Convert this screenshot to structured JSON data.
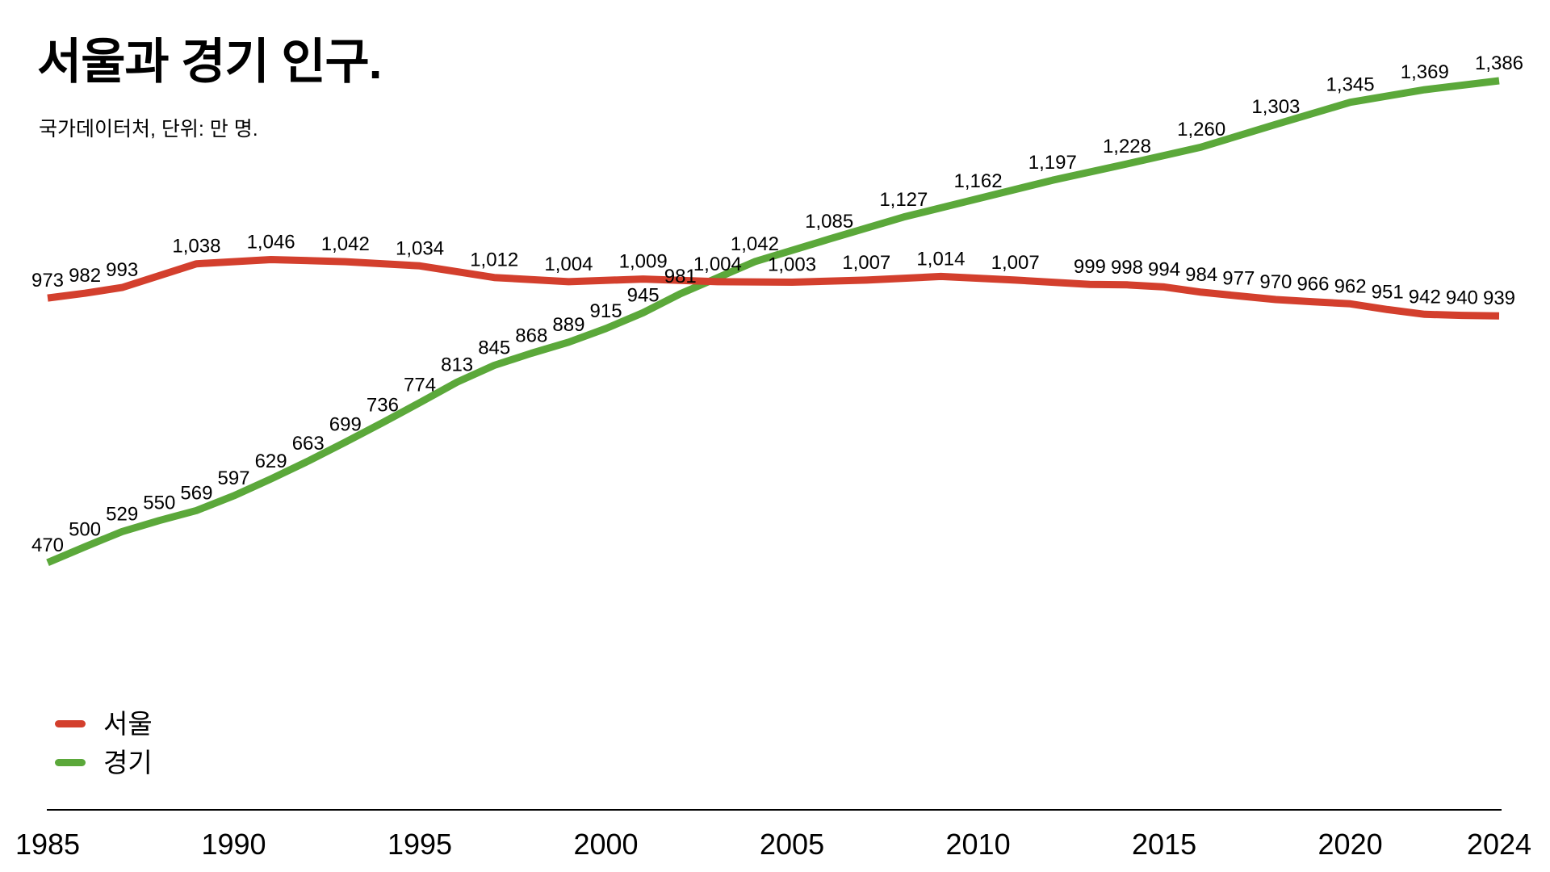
{
  "header": {
    "title": "서울과 경기 인구.",
    "subtitle": "국가데이터처, 단위: 만 명."
  },
  "legend": {
    "items": [
      {
        "label": "서울",
        "color": "#d33f2d"
      },
      {
        "label": "경기",
        "color": "#5ba83a"
      }
    ]
  },
  "colors": {
    "background": "#ffffff",
    "axis": "#000000",
    "label_text": "#000000",
    "seoul": "#d33f2d",
    "gyeonggi": "#5ba83a"
  },
  "chart_data": {
    "type": "line",
    "title": "서울과 경기 인구.",
    "subtitle": "국가데이터처, 단위: 만 명.",
    "unit": "만 명",
    "xlim": [
      1985,
      2024
    ],
    "ylim": [
      0,
      1450
    ],
    "x_ticks": [
      1985,
      1990,
      1995,
      2000,
      2005,
      2010,
      2015,
      2020,
      2024
    ],
    "grid": false,
    "y_axis_visible": false,
    "legend_position": "bottom-left",
    "series": [
      {
        "id": "seoul",
        "name": "서울",
        "color": "#d33f2d",
        "points": [
          [
            1985,
            973
          ],
          [
            1986,
            982
          ],
          [
            1987,
            993
          ],
          [
            1989,
            1038
          ],
          [
            1991,
            1046
          ],
          [
            1993,
            1042
          ],
          [
            1995,
            1034
          ],
          [
            1997,
            1012
          ],
          [
            1999,
            1004
          ],
          [
            2001,
            1009
          ],
          [
            2003,
            1004
          ],
          [
            2005,
            1003
          ],
          [
            2007,
            1007
          ],
          [
            2009,
            1014
          ],
          [
            2011,
            1007
          ],
          [
            2013,
            999
          ],
          [
            2014,
            998
          ],
          [
            2015,
            994
          ],
          [
            2016,
            984
          ],
          [
            2017,
            977
          ],
          [
            2018,
            970
          ],
          [
            2019,
            966
          ],
          [
            2020,
            962
          ],
          [
            2021,
            951
          ],
          [
            2022,
            942
          ],
          [
            2023,
            940
          ],
          [
            2024,
            939
          ]
        ]
      },
      {
        "id": "gyeonggi",
        "name": "경기",
        "color": "#5ba83a",
        "points": [
          [
            1985,
            470
          ],
          [
            1986,
            500
          ],
          [
            1987,
            529
          ],
          [
            1988,
            550
          ],
          [
            1989,
            569
          ],
          [
            1990,
            597
          ],
          [
            1991,
            629
          ],
          [
            1992,
            663
          ],
          [
            1993,
            699
          ],
          [
            1994,
            736
          ],
          [
            1995,
            774
          ],
          [
            1996,
            813
          ],
          [
            1997,
            845
          ],
          [
            1998,
            868
          ],
          [
            1999,
            889
          ],
          [
            2000,
            915
          ],
          [
            2001,
            945
          ],
          [
            2002,
            981
          ],
          [
            2004,
            1042
          ],
          [
            2006,
            1085
          ],
          [
            2008,
            1127
          ],
          [
            2010,
            1162
          ],
          [
            2012,
            1197
          ],
          [
            2014,
            1228
          ],
          [
            2016,
            1260
          ],
          [
            2018,
            1303
          ],
          [
            2020,
            1345
          ],
          [
            2022,
            1369
          ],
          [
            2024,
            1386
          ]
        ]
      }
    ]
  }
}
